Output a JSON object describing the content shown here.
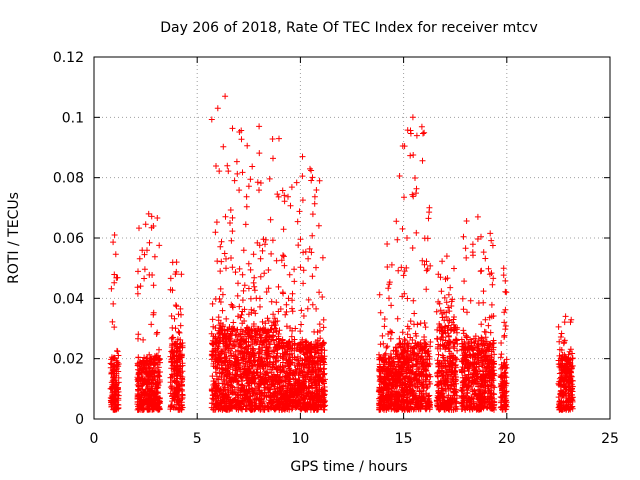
{
  "chart_data": {
    "type": "scatter",
    "title": "Day 206 of 2018, Rate Of TEC Index for receiver mtcv",
    "xlabel": "GPS time / hours",
    "ylabel": "ROTI / TECUs",
    "xlim": [
      0,
      25
    ],
    "ylim": [
      0,
      0.12
    ],
    "x_ticks": [
      "0",
      "5",
      "10",
      "15",
      "20",
      "25"
    ],
    "y_ticks": [
      "0",
      "0.02",
      "0.04",
      "0.06",
      "0.08",
      "0.1",
      "0.12"
    ],
    "grid": true,
    "marker": "+",
    "color": "#ff0000",
    "bursts": [
      {
        "x_start": 0.8,
        "x_end": 1.2,
        "dense_max": 0.02,
        "peak": 0.061
      },
      {
        "x_start": 2.1,
        "x_end": 3.2,
        "dense_max": 0.02,
        "peak": 0.068
      },
      {
        "x_start": 3.7,
        "x_end": 4.3,
        "dense_max": 0.025,
        "peak": 0.052
      },
      {
        "x_start": 5.7,
        "x_end": 7.0,
        "dense_max": 0.03,
        "peak": 0.107
      },
      {
        "x_start": 7.0,
        "x_end": 9.0,
        "dense_max": 0.03,
        "peak": 0.097
      },
      {
        "x_start": 9.0,
        "x_end": 11.2,
        "dense_max": 0.025,
        "peak": 0.087
      },
      {
        "x_start": 13.8,
        "x_end": 14.6,
        "dense_max": 0.02,
        "peak": 0.058
      },
      {
        "x_start": 14.6,
        "x_end": 16.3,
        "dense_max": 0.025,
        "peak": 0.1
      },
      {
        "x_start": 16.6,
        "x_end": 17.6,
        "dense_max": 0.03,
        "peak": 0.054
      },
      {
        "x_start": 17.8,
        "x_end": 19.4,
        "dense_max": 0.025,
        "peak": 0.067
      },
      {
        "x_start": 19.7,
        "x_end": 20.0,
        "dense_max": 0.02,
        "peak": 0.05
      },
      {
        "x_start": 22.5,
        "x_end": 23.2,
        "dense_max": 0.02,
        "peak": 0.034
      }
    ]
  }
}
